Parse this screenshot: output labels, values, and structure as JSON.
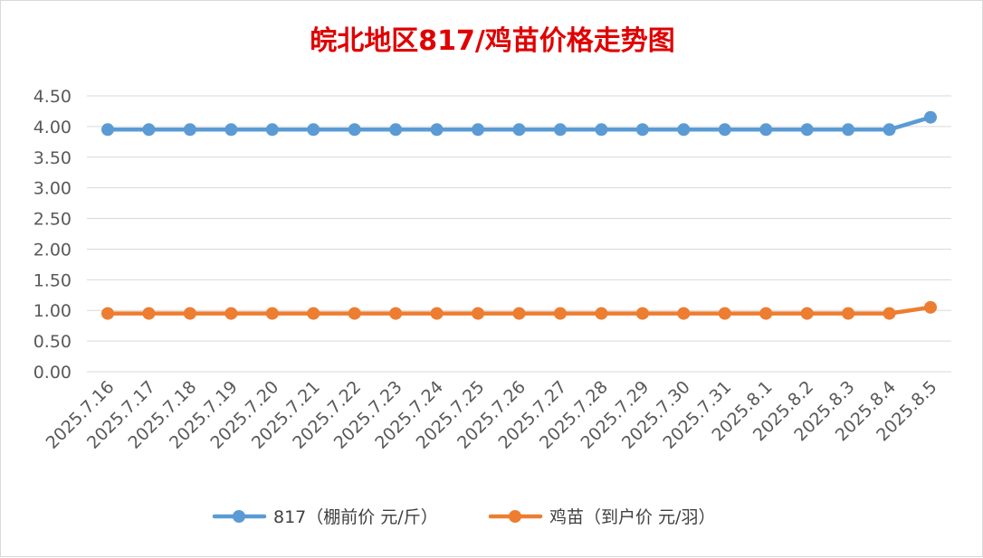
{
  "chart_data": {
    "type": "line",
    "title": "皖北地区817/鸡苗价格走势图",
    "title_color": "#e00000",
    "categories": [
      "2025.7.16",
      "2025.7.17",
      "2025.7.18",
      "2025.7.19",
      "2025.7.20",
      "2025.7.21",
      "2025.7.22",
      "2025.7.23",
      "2025.7.24",
      "2025.7.25",
      "2025.7.26",
      "2025.7.27",
      "2025.7.28",
      "2025.7.29",
      "2025.7.30",
      "2025.7.31",
      "2025.8.1",
      "2025.8.2",
      "2025.8.3",
      "2025.8.4",
      "2025.8.5"
    ],
    "series": [
      {
        "name": "817（棚前价 元/斤）",
        "color": "#5b9bd5",
        "values": [
          3.95,
          3.95,
          3.95,
          3.95,
          3.95,
          3.95,
          3.95,
          3.95,
          3.95,
          3.95,
          3.95,
          3.95,
          3.95,
          3.95,
          3.95,
          3.95,
          3.95,
          3.95,
          3.95,
          3.95,
          4.15
        ]
      },
      {
        "name": "鸡苗（到户价 元/羽）",
        "color": "#ed7d31",
        "values": [
          0.95,
          0.95,
          0.95,
          0.95,
          0.95,
          0.95,
          0.95,
          0.95,
          0.95,
          0.95,
          0.95,
          0.95,
          0.95,
          0.95,
          0.95,
          0.95,
          0.95,
          0.95,
          0.95,
          0.95,
          1.05
        ]
      }
    ],
    "ylim": [
      0,
      4.5
    ],
    "yticks": [
      "0.00",
      "0.50",
      "1.00",
      "1.50",
      "2.00",
      "2.50",
      "3.00",
      "3.50",
      "4.00",
      "4.50"
    ],
    "grid": true,
    "legend": "bottom"
  }
}
